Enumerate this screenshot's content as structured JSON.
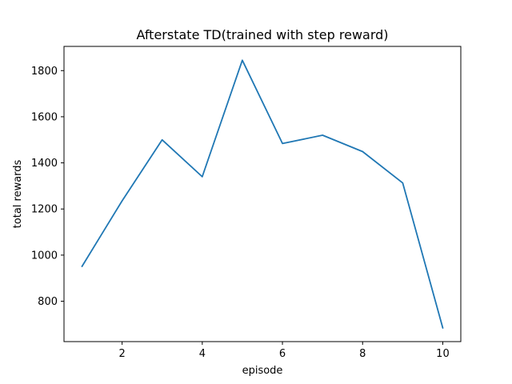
{
  "chart_data": {
    "type": "line",
    "title": "Afterstate TD(trained with step reward)",
    "xlabel": "episode",
    "ylabel": "total rewards",
    "x": [
      1,
      2,
      3,
      4,
      5,
      6,
      7,
      8,
      9,
      10
    ],
    "series": [
      {
        "values": [
          951,
          1235,
          1500,
          1340,
          1845,
          1484,
          1520,
          1449,
          1313,
          684
        ],
        "color": "#1f77b4"
      }
    ],
    "xlim": [
      0.55,
      10.45
    ],
    "ylim": [
      625,
      1905
    ],
    "xticks": [
      2,
      4,
      6,
      8,
      10
    ],
    "yticks": [
      800,
      1000,
      1200,
      1400,
      1600,
      1800
    ],
    "grid": false,
    "legend": "none"
  }
}
